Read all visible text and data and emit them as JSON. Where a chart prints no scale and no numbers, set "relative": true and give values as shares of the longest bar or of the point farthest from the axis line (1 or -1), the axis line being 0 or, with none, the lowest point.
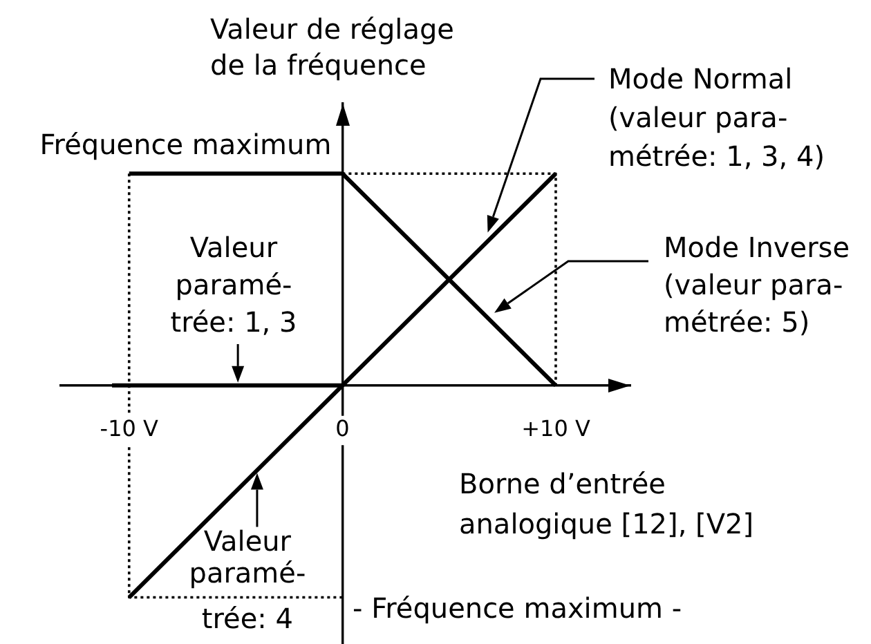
{
  "chart_data": {
    "type": "line",
    "xlabel": "Borne d’entrée\nanalogique [12], [V2]",
    "ylabel": "Valeur de réglage\nde la fréquence",
    "xlim": [
      -13.2,
      13.5
    ],
    "xticks": [
      {
        "value": -10,
        "label": "-10 V"
      },
      0,
      {
        "value": 10,
        "label": "+10 V"
      }
    ],
    "relative": true,
    "marker": "none",
    "line_style": "solid",
    "series": [
      {
        "name": "Mode Normal\n(valeur para-\nmétrée: 1, 3, 4)",
        "color": "#000000",
        "x": [
          -10,
          0,
          10
        ],
        "values": [
          -1,
          0,
          1
        ]
      },
      {
        "name": "Mode Inverse\n(valeur para-\nmétrée: 5)",
        "color": "#000000",
        "x": [
          -10,
          0,
          10
        ],
        "values": [
          1,
          1,
          0
        ]
      },
      {
        "name": "Valeur\nparamé-\ntrée: 1, 3",
        "color": "#000000",
        "x": [
          -10.8,
          0
        ],
        "values": [
          0,
          0
        ]
      },
      {
        "color": "#000000",
        "line_style": "dotted",
        "x": [
          0,
          10,
          10
        ],
        "values": [
          1,
          1,
          0
        ]
      },
      {
        "color": "#000000",
        "line_style": "dotted",
        "x": [
          0,
          -10,
          -10
        ],
        "values": [
          -1,
          -1,
          1
        ]
      }
    ],
    "annotations": [
      {
        "text": "Fréquence maximum",
        "y": 1
      },
      "- Fréquence maximum -",
      {
        "text": "Valeur\nparamé-\ntrée: 4",
        "x": -4,
        "y": -0.4
      }
    ]
  }
}
